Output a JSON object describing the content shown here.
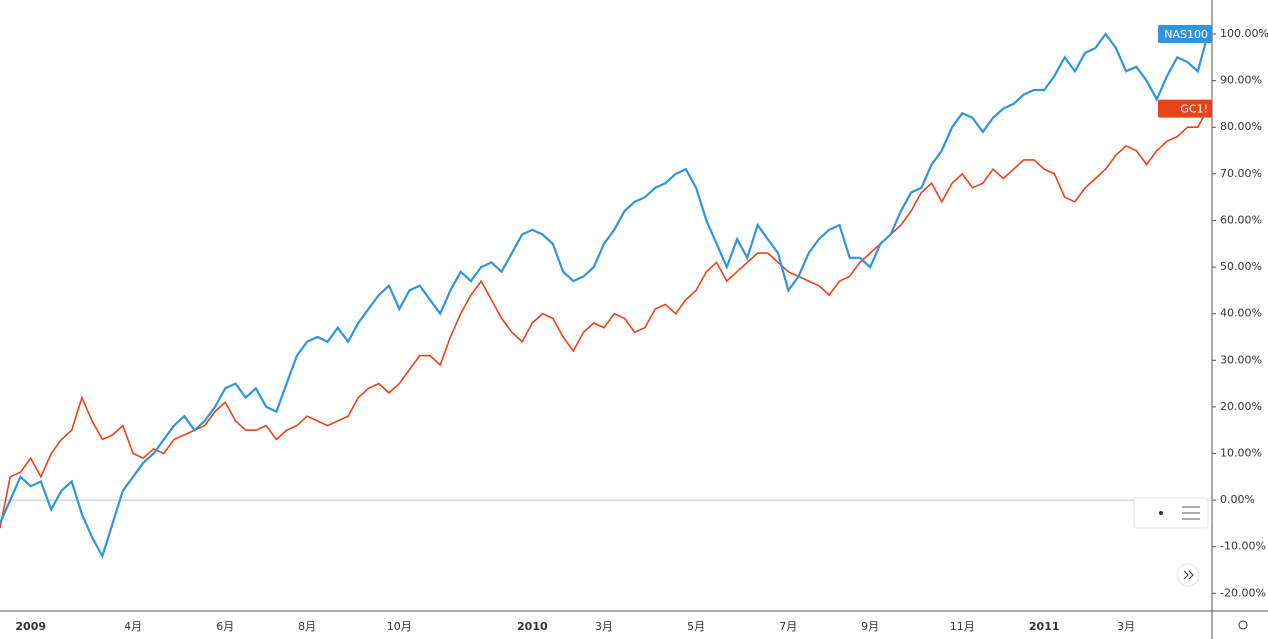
{
  "chart_data": {
    "type": "line",
    "categories": [
      null,
      null,
      null,
      "2009",
      null,
      null,
      null,
      null,
      null,
      null,
      null,
      null,
      null,
      "4月",
      null,
      null,
      null,
      null,
      null,
      null,
      null,
      null,
      "6月",
      null,
      null,
      null,
      null,
      null,
      null,
      null,
      "8月",
      null,
      null,
      null,
      null,
      null,
      null,
      null,
      null,
      "10月",
      null,
      null,
      null,
      null,
      null,
      null,
      null,
      null,
      null,
      null,
      null,
      null,
      "2010",
      null,
      null,
      null,
      null,
      null,
      null,
      "3月",
      null,
      null,
      null,
      null,
      null,
      null,
      null,
      null,
      "5月",
      null,
      null,
      null,
      null,
      null,
      null,
      null,
      null,
      "7月",
      null,
      null,
      null,
      null,
      null,
      null,
      null,
      "9月",
      null,
      null,
      null,
      null,
      null,
      null,
      null,
      null,
      "11月",
      null,
      null,
      null,
      null,
      null,
      null,
      null,
      "2011",
      null,
      null,
      null,
      null,
      null,
      null,
      null,
      "3月",
      null,
      null,
      null,
      null,
      null,
      null,
      null,
      null
    ],
    "series": [
      {
        "name": "NAS100",
        "color": "#2f95e0",
        "values": [
          -5,
          0,
          5,
          3,
          4,
          -2,
          2,
          4,
          -3,
          -8,
          -12,
          -5,
          2,
          5,
          8,
          10,
          13,
          16,
          18,
          15,
          17,
          20,
          24,
          25,
          22,
          24,
          20,
          19,
          25,
          31,
          34,
          35,
          34,
          37,
          34,
          38,
          41,
          44,
          46,
          41,
          45,
          46,
          43,
          40,
          45,
          49,
          47,
          50,
          51,
          49,
          53,
          57,
          58,
          57,
          55,
          49,
          47,
          48,
          50,
          55,
          58,
          62,
          64,
          65,
          67,
          68,
          70,
          71,
          67,
          60,
          55,
          50,
          56,
          52,
          59,
          56,
          53,
          45,
          48,
          53,
          56,
          58,
          59,
          52,
          52,
          50,
          55,
          57,
          62,
          66,
          67,
          72,
          75,
          80,
          83,
          82,
          79,
          82,
          84,
          85,
          87,
          88,
          88,
          91,
          95,
          92,
          96,
          97,
          100,
          97,
          92,
          93,
          90,
          86,
          91,
          95,
          94,
          92,
          100
        ]
      },
      {
        "name": "GC1!",
        "color": "#e8431b",
        "values": [
          -6,
          5,
          6,
          9,
          5,
          10,
          13,
          15,
          22,
          17,
          13,
          14,
          16,
          10,
          9,
          11,
          10,
          13,
          14,
          15,
          16,
          19,
          21,
          17,
          15,
          15,
          16,
          13,
          15,
          16,
          18,
          17,
          16,
          17,
          18,
          22,
          24,
          25,
          23,
          25,
          28,
          31,
          31,
          29,
          35,
          40,
          44,
          47,
          43,
          39,
          36,
          34,
          38,
          40,
          39,
          35,
          32,
          36,
          38,
          37,
          40,
          39,
          36,
          37,
          41,
          42,
          40,
          43,
          45,
          49,
          51,
          47,
          49,
          51,
          53,
          53,
          51,
          49,
          48,
          47,
          46,
          44,
          47,
          48,
          51,
          53,
          55,
          57,
          59,
          62,
          66,
          68,
          64,
          68,
          70,
          67,
          68,
          71,
          69,
          71,
          73,
          73,
          71,
          70,
          65,
          64,
          67,
          69,
          71,
          74,
          76,
          75,
          72,
          75,
          77,
          78,
          80,
          80,
          84
        ]
      }
    ],
    "ylim": [
      -24,
      107.3
    ],
    "yticks": [
      {
        "value": -20,
        "label": "-20.00%"
      },
      {
        "value": -10,
        "label": "-10.00%"
      },
      {
        "value": 0,
        "label": "0.00%"
      },
      {
        "value": 10,
        "label": "10.00%"
      },
      {
        "value": 20,
        "label": "20.00%"
      },
      {
        "value": 30,
        "label": "30.00%"
      },
      {
        "value": 40,
        "label": "40.00%"
      },
      {
        "value": 50,
        "label": "50.00%"
      },
      {
        "value": 60,
        "label": "60.00%"
      },
      {
        "value": 70,
        "label": "70.00%"
      },
      {
        "value": 80,
        "label": "80.00%"
      },
      {
        "value": 90,
        "label": "90.00%"
      },
      {
        "value": 100,
        "label": "100.00%"
      }
    ]
  }
}
